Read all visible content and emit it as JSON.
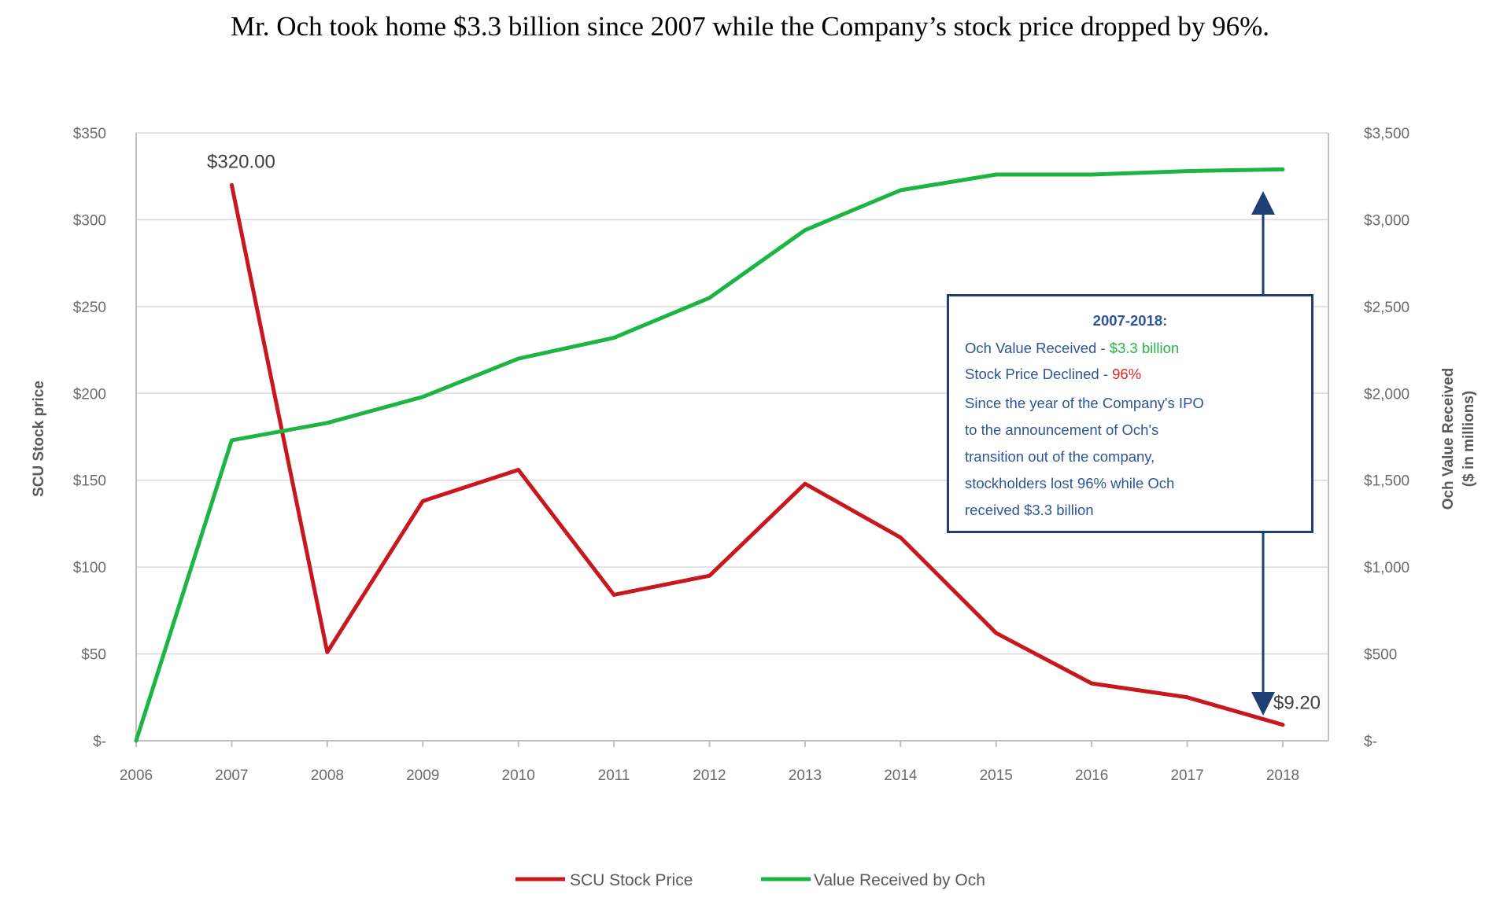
{
  "headline": "Mr. Och took home $3.3 billion since 2007 while the Company’s stock price dropped by 96%.",
  "chart_data": {
    "type": "line",
    "x": [
      2006,
      2007,
      2008,
      2009,
      2010,
      2011,
      2012,
      2013,
      2014,
      2015,
      2016,
      2017,
      2018
    ],
    "x_tick_labels": [
      "2006",
      "2007",
      "2008",
      "2009",
      "2010",
      "2011",
      "2012",
      "2013",
      "2014",
      "2015",
      "2016",
      "2017",
      "2018"
    ],
    "series": [
      {
        "name": "SCU Stock Price",
        "axis": "left",
        "color": "#c8171d",
        "x": [
          2007,
          2008,
          2009,
          2010,
          2011,
          2012,
          2013,
          2014,
          2015,
          2016,
          2017,
          2018
        ],
        "values": [
          320,
          51,
          138,
          156,
          84,
          95,
          148,
          117,
          62,
          33,
          25,
          9.2
        ]
      },
      {
        "name": "Value Received by Och",
        "axis": "right",
        "color": "#1cb543",
        "x": [
          2006,
          2007,
          2008,
          2009,
          2010,
          2011,
          2012,
          2013,
          2014,
          2015,
          2016,
          2017,
          2018
        ],
        "values": [
          0,
          1730,
          1830,
          1980,
          2200,
          2320,
          2550,
          2940,
          3170,
          3260,
          3260,
          3280,
          3290
        ]
      }
    ],
    "ylabel_left": "SCU Stock price",
    "ylabel_right_line1": "Och Value Received",
    "ylabel_right_line2": "($ in millions)",
    "ylim_left": [
      0,
      350
    ],
    "ylim_right": [
      0,
      3500
    ],
    "y_left_ticks": [
      {
        "value": 0,
        "label": "$-"
      },
      {
        "value": 50,
        "label": "$50"
      },
      {
        "value": 100,
        "label": "$100"
      },
      {
        "value": 150,
        "label": "$150"
      },
      {
        "value": 200,
        "label": "$200"
      },
      {
        "value": 250,
        "label": "$250"
      },
      {
        "value": 300,
        "label": "$300"
      },
      {
        "value": 350,
        "label": "$350"
      }
    ],
    "y_right_ticks": [
      {
        "value": 0,
        "label": "$-"
      },
      {
        "value": 500,
        "label": "$500"
      },
      {
        "value": 1000,
        "label": "$1,000"
      },
      {
        "value": 1500,
        "label": "$1,500"
      },
      {
        "value": 2000,
        "label": "$2,000"
      },
      {
        "value": 2500,
        "label": "$2,500"
      },
      {
        "value": 3000,
        "label": "$3,000"
      },
      {
        "value": 3500,
        "label": "$3,500"
      }
    ],
    "data_labels": [
      {
        "text": "$320.00",
        "x": 2007,
        "y": 320
      },
      {
        "text": "$9.20",
        "x": 2018,
        "y": 9.2
      }
    ],
    "grid": true,
    "legend_position": "bottom-center"
  },
  "callout": {
    "title": "2007-2018:",
    "line1_prefix": "Och Value Received - ",
    "line1_value": "$3.3 billion",
    "line2_prefix": "Stock Price Declined - ",
    "line2_value": "96%",
    "body_lines": [
      "Since the year of the Company's IPO",
      "to the announcement of Och's",
      "transition out of the company,",
      "stockholders lost 96% while Och",
      "received $3.3 billion"
    ],
    "border_color": "#1f3f73"
  }
}
